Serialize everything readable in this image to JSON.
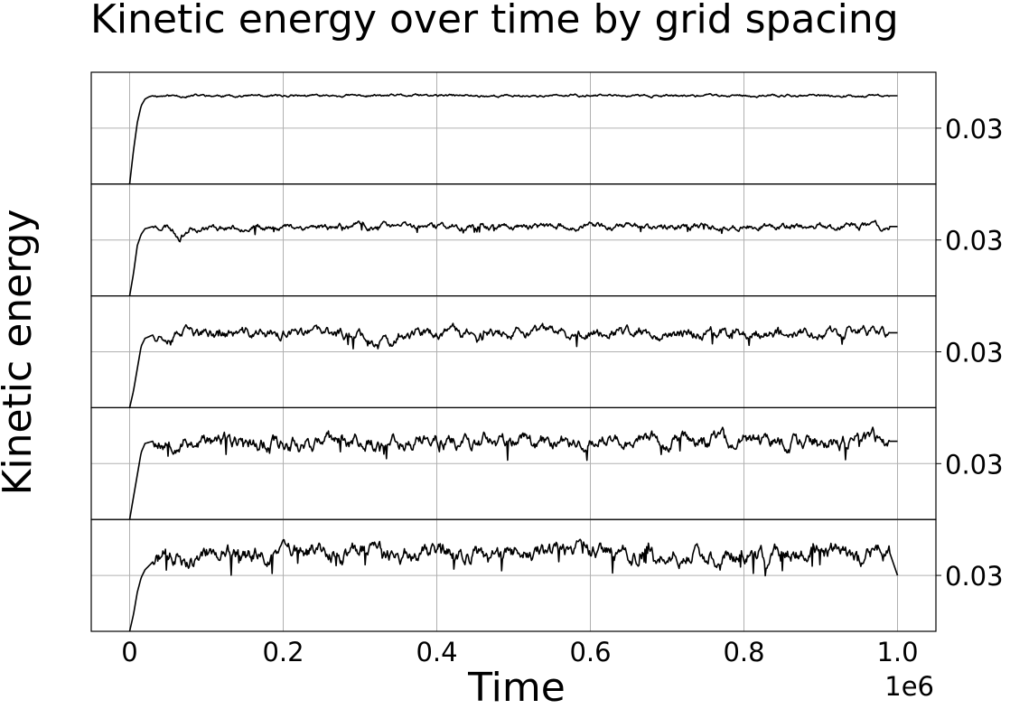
{
  "chart_data": {
    "type": "line",
    "title": "Kinetic energy over time by grid spacing",
    "xlabel": "Time",
    "ylabel": "Kinetic energy",
    "x_offset_label": "1e6",
    "x_scale": 1000000,
    "xlim": [
      -0.05,
      1.05
    ],
    "x_ticks": [
      0,
      0.2,
      0.4,
      0.6,
      0.8,
      1.0
    ],
    "x_tick_labels": [
      "0",
      "0.2",
      "0.4",
      "0.6",
      "0.8",
      "1.0"
    ],
    "grid": true,
    "legend": "none",
    "line_color": "#000000",
    "panels": [
      {
        "y_tick_label": "0.03",
        "ylim": [
          0,
          1
        ],
        "y_tick": 0.5,
        "x": [
          0,
          0.005,
          0.01,
          0.015,
          0.02,
          0.025,
          0.03,
          0.05,
          0.1,
          0.2,
          0.3,
          0.4,
          0.5,
          0.6,
          0.7,
          0.8,
          0.9,
          1.0
        ],
        "values": [
          0.0,
          0.3,
          0.55,
          0.7,
          0.76,
          0.78,
          0.79,
          0.79,
          0.79,
          0.79,
          0.79,
          0.79,
          0.79,
          0.79,
          0.79,
          0.79,
          0.79,
          0.79
        ],
        "noise": 0.012,
        "seed": 11
      },
      {
        "y_tick_label": "0.03",
        "ylim": [
          0,
          1
        ],
        "y_tick": 0.5,
        "x": [
          0,
          0.005,
          0.01,
          0.015,
          0.02,
          0.03,
          0.05,
          0.065,
          0.08,
          0.2,
          0.3,
          0.4,
          0.5,
          0.6,
          0.7,
          0.8,
          0.9,
          1.0
        ],
        "values": [
          0.0,
          0.2,
          0.45,
          0.55,
          0.6,
          0.62,
          0.63,
          0.53,
          0.61,
          0.62,
          0.62,
          0.62,
          0.62,
          0.62,
          0.62,
          0.62,
          0.62,
          0.62
        ],
        "noise": 0.03,
        "seed": 23
      },
      {
        "y_tick_label": "0.03",
        "ylim": [
          0,
          1
        ],
        "y_tick": 0.5,
        "x": [
          0,
          0.005,
          0.01,
          0.015,
          0.02,
          0.03,
          0.05,
          0.2,
          0.3,
          0.34,
          0.345,
          0.36,
          0.5,
          0.6,
          0.7,
          0.8,
          0.9,
          1.0
        ],
        "values": [
          0.0,
          0.15,
          0.35,
          0.55,
          0.62,
          0.65,
          0.66,
          0.66,
          0.66,
          0.55,
          0.62,
          0.67,
          0.66,
          0.67,
          0.67,
          0.67,
          0.67,
          0.67
        ],
        "noise": 0.05,
        "seed": 37
      },
      {
        "y_tick_label": "0.03",
        "ylim": [
          0,
          1
        ],
        "y_tick": 0.5,
        "x": [
          0,
          0.005,
          0.01,
          0.015,
          0.02,
          0.03,
          0.05,
          0.2,
          0.4,
          0.6,
          0.8,
          1.0
        ],
        "values": [
          0.0,
          0.2,
          0.4,
          0.6,
          0.68,
          0.7,
          0.7,
          0.69,
          0.7,
          0.7,
          0.7,
          0.7
        ],
        "noise": 0.07,
        "seed": 53
      },
      {
        "y_tick_label": "0.03",
        "ylim": [
          0,
          1
        ],
        "y_tick": 0.5,
        "x": [
          0,
          0.005,
          0.01,
          0.015,
          0.02,
          0.03,
          0.05,
          0.2,
          0.4,
          0.6,
          0.8,
          0.99,
          1.0
        ],
        "values": [
          0.0,
          0.15,
          0.35,
          0.48,
          0.55,
          0.62,
          0.67,
          0.7,
          0.7,
          0.7,
          0.7,
          0.7,
          0.5
        ],
        "noise": 0.08,
        "seed": 71
      }
    ]
  }
}
